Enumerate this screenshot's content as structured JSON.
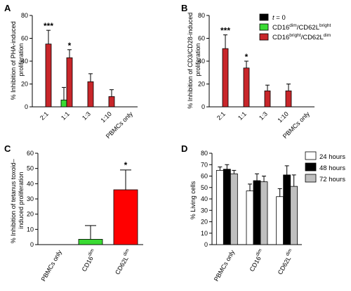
{
  "chart_data": [
    {
      "type": "bar",
      "panel_label": "A",
      "ylabel": [
        "% Inhibition of PHA-induced",
        "proliferation"
      ],
      "ylim": [
        0,
        80
      ],
      "yticks": [
        "0",
        "20",
        "40",
        "60",
        "80"
      ],
      "categories": [
        "2:1",
        "1:1",
        "1:3",
        "1:10",
        "PBMCs only"
      ],
      "series": [
        {
          "name": "",
          "color": "#000000",
          "values": [
            0,
            0,
            0,
            0,
            0
          ],
          "errors": [
            0,
            0,
            0,
            0,
            0
          ]
        },
        {
          "name": "",
          "color": "#3adb33",
          "values": [
            0,
            6,
            0,
            0,
            0
          ],
          "errors": [
            0,
            11,
            0,
            0,
            0
          ]
        },
        {
          "name": "",
          "color": "#c8262a",
          "values": [
            55,
            43,
            22,
            9,
            0
          ],
          "errors": [
            12,
            7,
            7,
            6,
            0
          ]
        }
      ],
      "annotations": [
        "***",
        "*",
        "",
        "",
        ""
      ]
    },
    {
      "type": "bar",
      "panel_label": "B",
      "ylabel": [
        "% Inhibition of CD3/CD28-induced",
        "proliferation"
      ],
      "ylim": [
        0,
        80
      ],
      "yticks": [
        "0",
        "20",
        "40",
        "60",
        "80"
      ],
      "categories": [
        "2:1",
        "1:1",
        "1:3",
        "1:10",
        "PBMCs only"
      ],
      "series": [
        {
          "name": "t = 0",
          "color": "#000000",
          "values": [
            0,
            0,
            0,
            0,
            0
          ],
          "errors": [
            0,
            0,
            0,
            0,
            0
          ]
        },
        {
          "name": "CD16dim/CD62Lbright",
          "color": "#3adb33",
          "values": [
            0,
            0,
            0,
            0,
            0
          ],
          "errors": [
            0,
            0,
            0,
            0,
            0
          ]
        },
        {
          "name": "CD16bright/CD62Ldim",
          "color": "#c8262a",
          "values": [
            51,
            34,
            14,
            14,
            0
          ],
          "errors": [
            12,
            6,
            5,
            6,
            0
          ]
        }
      ],
      "annotations": [
        "***",
        "*",
        "",
        "",
        ""
      ],
      "legend": {
        "placement": "top-right",
        "entries": [
          {
            "prefix": "",
            "italic": "t",
            "main": " = 0",
            "sup1": "",
            "mid": "",
            "sup2": ""
          },
          {
            "prefix": "",
            "italic": "",
            "main": "CD16",
            "sup1": "dim",
            "mid": "/CD62L",
            "sup2": "bright"
          },
          {
            "prefix": "",
            "italic": "",
            "main": "CD16",
            "sup1": "bright",
            "mid": "/CD62L",
            "sup2": "dim"
          }
        ]
      }
    },
    {
      "type": "bar",
      "panel_label": "C",
      "ylabel": [
        "% Inhibition of tetanus toxoid–",
        "induced proliferation"
      ],
      "ylim": [
        0,
        60
      ],
      "yticks": [
        "0",
        "10",
        "20",
        "30",
        "40",
        "50",
        "60"
      ],
      "categories": [
        {
          "main": "PBMCs only",
          "sup": ""
        },
        {
          "main": "CD16",
          "sup": "dim"
        },
        {
          "main": "CD62L",
          "sup": "dim"
        }
      ],
      "values": [
        0,
        3.5,
        36
      ],
      "errors": [
        0,
        9,
        13
      ],
      "colors": [
        "#ffffff",
        "#3adb33",
        "#ff0000"
      ],
      "annotations": [
        "",
        "",
        "*"
      ]
    },
    {
      "type": "bar",
      "panel_label": "D",
      "ylabel": [
        "% Living cells"
      ],
      "ylim": [
        0,
        80
      ],
      "yticks": [
        "0",
        "10",
        "20",
        "30",
        "40",
        "50",
        "60",
        "70",
        "80"
      ],
      "categories": [
        {
          "main": "PBMCs only",
          "sup": ""
        },
        {
          "main": "CD16",
          "sup": "dim"
        },
        {
          "main": "CD62L",
          "sup": "dim"
        }
      ],
      "series": [
        {
          "name": "24 hours",
          "color": "#ffffff",
          "values": [
            65,
            47,
            42
          ],
          "errors": [
            3,
            6,
            7
          ]
        },
        {
          "name": "48 hours",
          "color": "#000000",
          "values": [
            66,
            56,
            61
          ],
          "errors": [
            4,
            6,
            8
          ]
        },
        {
          "name": "72 hours",
          "color": "#bfbfbf",
          "values": [
            62,
            55,
            51
          ],
          "errors": [
            3,
            5,
            10
          ]
        }
      ],
      "legend": {
        "placement": "top-right"
      }
    }
  ]
}
